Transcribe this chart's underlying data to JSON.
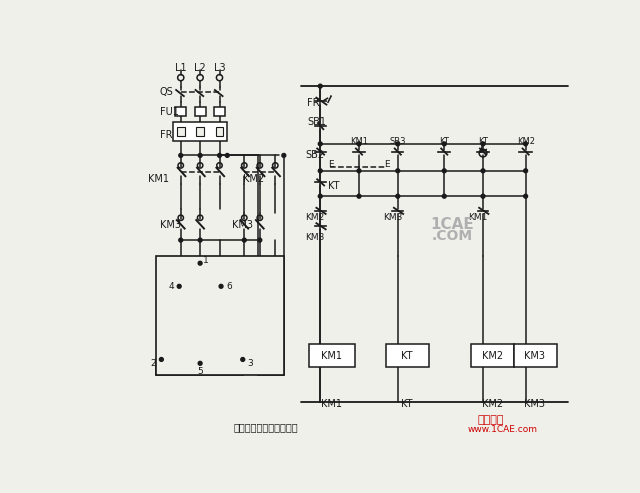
{
  "bg_color": "#f0f0eb",
  "lc": "#1a1a1a",
  "title": "頂速电动机调速控制线路",
  "wm_red": "#cc0000",
  "wm_url": "www.1CAE.com",
  "wm_text": "仿真在线",
  "wm_gray": "#b0b0b0"
}
